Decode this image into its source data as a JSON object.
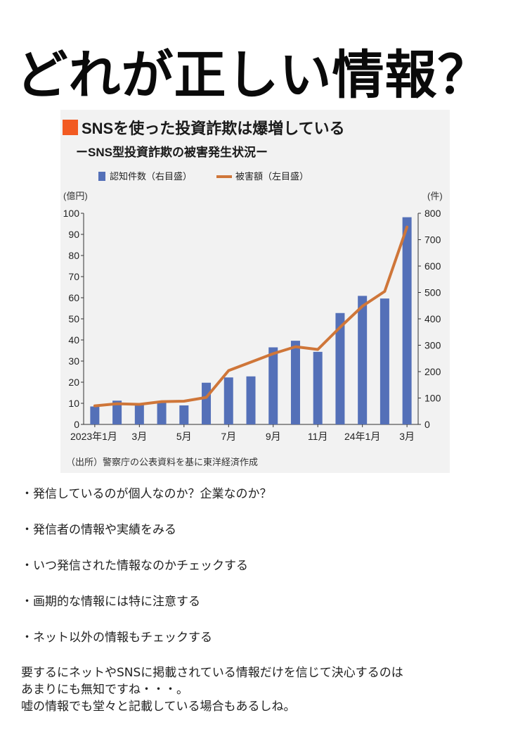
{
  "title": "どれが正しい情報？",
  "chart_data": {
    "type": "bar+line",
    "title": "SNSを使った投資詐欺は爆増している",
    "subtitle": "ーSNS型投資詐欺の被害発生状況ー",
    "title_marker_color": "#f25a22",
    "legend": {
      "bar_label": "認知件数（右目盛）",
      "line_label": "被害額（左目盛）",
      "placement": "top"
    },
    "left_axis": {
      "unit": "(億円)",
      "min": 0,
      "max": 100,
      "ticks": [
        0,
        10,
        20,
        30,
        40,
        50,
        60,
        70,
        80,
        90,
        100
      ]
    },
    "right_axis": {
      "unit": "(件)",
      "min": 0,
      "max": 800,
      "ticks": [
        0,
        100,
        200,
        300,
        400,
        500,
        600,
        700,
        800
      ]
    },
    "x_tick_labels": [
      "2023年1月",
      "3月",
      "5月",
      "7月",
      "9月",
      "11月",
      "24年1月",
      "3月"
    ],
    "x_tick_positions": [
      0,
      2,
      4,
      6,
      8,
      10,
      12,
      14
    ],
    "series": [
      {
        "name": "認知件数（右目盛）",
        "kind": "bar",
        "axis": "right",
        "color": "#5470b8",
        "values": [
          68,
          90,
          75,
          85,
          72,
          158,
          178,
          182,
          292,
          317,
          275,
          422,
          487,
          477,
          785
        ]
      },
      {
        "name": "被害額（左目盛）",
        "kind": "line",
        "axis": "left",
        "color": "#cf7639",
        "values": [
          8.8,
          9.8,
          9.5,
          10.8,
          11.0,
          12.8,
          25.5,
          29.5,
          33.5,
          36.8,
          35.5,
          46.0,
          56.0,
          63.0,
          93.5
        ]
      }
    ],
    "grid": false,
    "source": "（出所）警察庁の公表資料を基に東洋経済作成"
  },
  "bullets": [
    "・発信しているのが個人なのか？企業なのか？",
    "・発信者の情報や実績をみる",
    "・いつ発信された情報なのかチェックする",
    "・画期的な情報には特に注意する",
    "・ネット以外の情報もチェックする"
  ],
  "summary": [
    "要するにネットやSNSに掲載されている情報だけを信じて決心するのは",
    "あまりにも無知ですね・・・。",
    "嘘の情報でも堂々と記載している場合もあるしね。"
  ]
}
